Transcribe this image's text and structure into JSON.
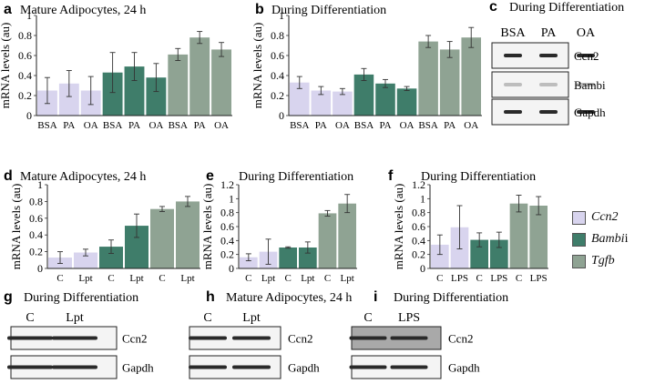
{
  "colors": {
    "ccn2": "#d8d4ee",
    "bambi": "#3f7d6a",
    "tgfb": "#8fa393"
  },
  "legend": [
    {
      "label": "Ccn2",
      "color": "#d8d4ee"
    },
    {
      "label": "Bambi",
      "suffix": "i",
      "color": "#3f7d6a"
    },
    {
      "label": "Tgfb",
      "color": "#8fa393"
    }
  ],
  "chart_data": [
    {
      "panel": "a",
      "title": "Mature Adipocytes, 24 h",
      "type": "bar",
      "ylabel": "mRNA levels (au)",
      "ylim": [
        0,
        1.0
      ],
      "ticks": [
        0,
        0.2,
        0.4,
        0.6,
        0.8,
        1.0
      ],
      "categories": [
        "BSA",
        "PA",
        "OA",
        "BSA",
        "PA",
        "OA",
        "BSA",
        "PA",
        "OA"
      ],
      "values": [
        0.25,
        0.32,
        0.25,
        0.43,
        0.49,
        0.38,
        0.61,
        0.78,
        0.66
      ],
      "errors": [
        0.13,
        0.13,
        0.14,
        0.2,
        0.14,
        0.14,
        0.06,
        0.06,
        0.07
      ],
      "genes": [
        "ccn2",
        "ccn2",
        "ccn2",
        "bambi",
        "bambi",
        "bambi",
        "tgfb",
        "tgfb",
        "tgfb"
      ]
    },
    {
      "panel": "b",
      "title": "During Differentiation",
      "type": "bar",
      "ylabel": "mRNA levels (au)",
      "ylim": [
        0,
        1.0
      ],
      "ticks": [
        0,
        0.2,
        0.4,
        0.6,
        0.8,
        1.0
      ],
      "categories": [
        "BSA",
        "PA",
        "OA",
        "BSA",
        "PA",
        "OA",
        "BSA",
        "PA",
        "OA"
      ],
      "values": [
        0.33,
        0.25,
        0.24,
        0.41,
        0.32,
        0.27,
        0.74,
        0.66,
        0.78
      ],
      "errors": [
        0.06,
        0.04,
        0.03,
        0.06,
        0.04,
        0.02,
        0.06,
        0.08,
        0.1
      ],
      "genes": [
        "ccn2",
        "ccn2",
        "ccn2",
        "bambi",
        "bambi",
        "bambi",
        "tgfb",
        "tgfb",
        "tgfb"
      ]
    },
    {
      "panel": "d",
      "title": "Mature Adipocytes, 24 h",
      "type": "bar",
      "ylabel": "mRNA levels (au)",
      "ylim": [
        0,
        1.0
      ],
      "ticks": [
        0,
        0.2,
        0.4,
        0.6,
        0.8,
        1.0
      ],
      "categories": [
        "C",
        "Lpt",
        "C",
        "Lpt",
        "C",
        "Lpt"
      ],
      "values": [
        0.13,
        0.19,
        0.26,
        0.51,
        0.71,
        0.8
      ],
      "errors": [
        0.07,
        0.04,
        0.08,
        0.14,
        0.03,
        0.06
      ],
      "genes": [
        "ccn2",
        "ccn2",
        "bambi",
        "bambi",
        "tgfb",
        "tgfb"
      ]
    },
    {
      "panel": "e",
      "title": "During Differentiation",
      "type": "bar",
      "ylabel": "mRNA levels (au)",
      "ylim": [
        0,
        1.2
      ],
      "ticks": [
        0,
        0.2,
        0.4,
        0.6,
        0.8,
        1.0,
        1.2
      ],
      "categories": [
        "C",
        "Lpt",
        "C",
        "Lpt",
        "C",
        "Lpt"
      ],
      "values": [
        0.16,
        0.24,
        0.3,
        0.3,
        0.79,
        0.93
      ],
      "errors": [
        0.05,
        0.18,
        0.01,
        0.08,
        0.04,
        0.13
      ],
      "genes": [
        "ccn2",
        "ccn2",
        "bambi",
        "bambi",
        "tgfb",
        "tgfb"
      ]
    },
    {
      "panel": "f",
      "title": "During Differentiation",
      "type": "bar",
      "ylabel": "mRNA levels (au)",
      "ylim": [
        0,
        1.2
      ],
      "ticks": [
        0,
        0.2,
        0.4,
        0.6,
        0.8,
        1.0,
        1.2
      ],
      "categories": [
        "C",
        "LPS",
        "C",
        "LPS",
        "C",
        "LPS"
      ],
      "values": [
        0.34,
        0.59,
        0.41,
        0.41,
        0.93,
        0.9
      ],
      "errors": [
        0.14,
        0.31,
        0.1,
        0.11,
        0.12,
        0.13
      ],
      "genes": [
        "ccn2",
        "ccn2",
        "bambi",
        "bambi",
        "tgfb",
        "tgfb"
      ]
    }
  ],
  "blots": [
    {
      "panel": "c",
      "title": "During Differentiation",
      "lanes": [
        "BSA",
        "PA",
        "OA"
      ],
      "rows": [
        "Ccn2",
        "Bambi",
        "Gapdh"
      ]
    },
    {
      "panel": "g",
      "title": "During Differentiation",
      "lanes": [
        "C",
        "Lpt"
      ],
      "rows": [
        "Ccn2",
        "Gapdh"
      ]
    },
    {
      "panel": "h",
      "title": "Mature Adipocytes, 24 h",
      "lanes": [
        "C",
        "Lpt"
      ],
      "rows": [
        "Ccn2",
        "Gapdh"
      ]
    },
    {
      "panel": "i",
      "title": "During Differentiation",
      "lanes": [
        "C",
        "LPS"
      ],
      "rows": [
        "Ccn2",
        "Gapdh"
      ]
    }
  ]
}
